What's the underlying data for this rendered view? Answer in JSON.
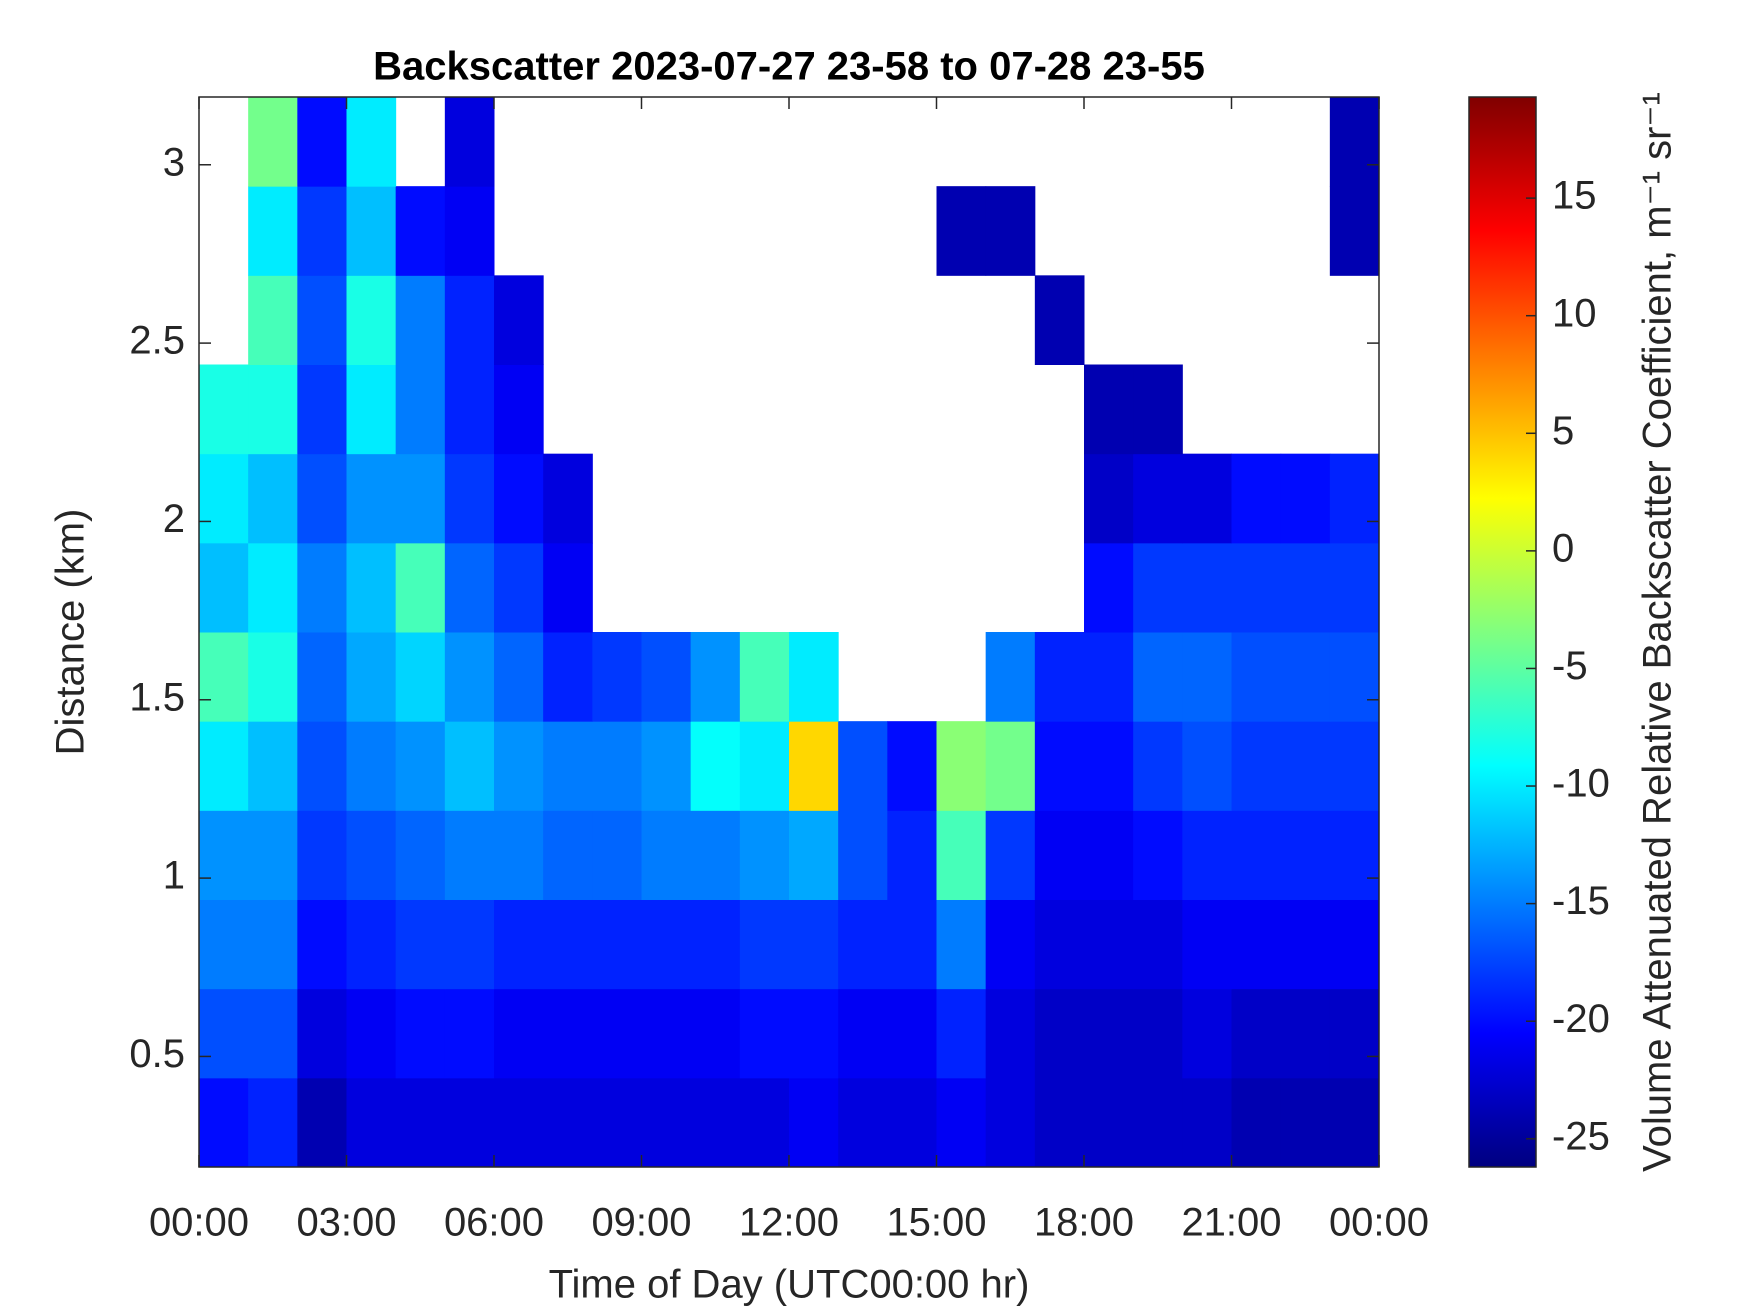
{
  "chart_data": {
    "type": "heatmap",
    "title": "Backscatter 2023-07-27 23-58 to 07-28 23-55",
    "xlabel": "Time of Day (UTC00:00 hr)",
    "ylabel": "Distance (km)",
    "colorbar_label": "Volume Attenuated Relative Backscatter Coefficient, m⁻¹ sr⁻¹",
    "colormap": "jet",
    "grid": false,
    "xlim": [
      0,
      24
    ],
    "xticks": [
      {
        "value": 0,
        "label": "00:00"
      },
      {
        "value": 3,
        "label": "03:00"
      },
      {
        "value": 6,
        "label": "06:00"
      },
      {
        "value": 9,
        "label": "09:00"
      },
      {
        "value": 12,
        "label": "12:00"
      },
      {
        "value": 15,
        "label": "15:00"
      },
      {
        "value": 18,
        "label": "18:00"
      },
      {
        "value": 21,
        "label": "21:00"
      },
      {
        "value": 24,
        "label": "00:00"
      }
    ],
    "ylim": [
      0.19,
      3.19
    ],
    "yticks": [
      0.5,
      1,
      1.5,
      2,
      2.5,
      3
    ],
    "zlim": [
      -26.2,
      19.3
    ],
    "zticks": [
      -25,
      -20,
      -15,
      -10,
      -5,
      0,
      5,
      10,
      15
    ],
    "xbins": [
      0,
      1,
      2,
      3,
      4,
      5,
      6,
      7,
      8,
      9,
      10,
      11,
      12,
      13,
      14,
      15,
      16,
      17,
      18,
      19,
      20,
      21,
      22,
      23,
      24
    ],
    "ybins": [
      0.19,
      0.44,
      0.69,
      0.94,
      1.19,
      1.44,
      1.69,
      1.94,
      2.19,
      2.44,
      2.69,
      2.94,
      3.19
    ],
    "z": [
      [
        -20,
        -19,
        -24,
        -22,
        -22,
        -22,
        -22,
        -22,
        -22,
        -22,
        -22,
        -22,
        -21,
        -22,
        -22,
        -21,
        -22,
        -23,
        -23,
        -23,
        -23,
        -24,
        -24,
        -24
      ],
      [
        -17,
        -17,
        -22,
        -21,
        -20,
        -20,
        -21,
        -21,
        -21,
        -21,
        -21,
        -20,
        -20,
        -21,
        -21,
        -19,
        -22,
        -23,
        -23,
        -23,
        -22,
        -23,
        -23,
        -23
      ],
      [
        -15,
        -15,
        -20,
        -19,
        -18,
        -18,
        -19,
        -19,
        -19,
        -19,
        -19,
        -18,
        -18,
        -19,
        -19,
        -15,
        -21,
        -22,
        -22,
        -22,
        -21,
        -21,
        -21,
        -21
      ],
      [
        -14,
        -14,
        -18,
        -17,
        -16,
        -15,
        -15,
        -16,
        -16,
        -15,
        -15,
        -14,
        -13,
        -17,
        -19,
        -6,
        -18,
        -21,
        -21,
        -20,
        -19,
        -19,
        -19,
        -19
      ],
      [
        -10,
        -12,
        -17,
        -15,
        -14,
        -12,
        -14,
        -15,
        -15,
        -14,
        -9,
        -10,
        4,
        -17,
        -20,
        -3,
        -4,
        -20,
        -20,
        -18,
        -17,
        -18,
        -18,
        -18
      ],
      [
        -6,
        -8,
        -16,
        -13,
        -11,
        -14,
        -16,
        -19,
        -18,
        -17,
        -14,
        -6,
        -10,
        null,
        null,
        null,
        -15,
        -19,
        -19,
        -16,
        -16,
        -17,
        -17,
        -17
      ],
      [
        -12,
        -10,
        -15,
        -12,
        -6,
        -16,
        -18,
        -21,
        null,
        null,
        null,
        null,
        null,
        null,
        null,
        null,
        null,
        null,
        -20,
        -18,
        -18,
        -18,
        -18,
        -18
      ],
      [
        -10,
        -12,
        -17,
        -14,
        -14,
        -18,
        -20,
        -22,
        null,
        null,
        null,
        null,
        null,
        null,
        null,
        null,
        null,
        null,
        -23,
        -22,
        -22,
        -20,
        -20,
        -19
      ],
      [
        -8,
        -8,
        -18,
        -10,
        -15,
        -19,
        -21,
        null,
        null,
        null,
        null,
        null,
        null,
        null,
        null,
        null,
        null,
        null,
        -24,
        -24,
        null,
        null,
        null,
        null
      ],
      [
        null,
        -6,
        -17,
        -8,
        -15,
        -19,
        -22,
        null,
        null,
        null,
        null,
        null,
        null,
        null,
        null,
        null,
        null,
        -24,
        null,
        null,
        null,
        null,
        null,
        null
      ],
      [
        null,
        -10,
        -18,
        -12,
        -20,
        -21,
        null,
        null,
        null,
        null,
        null,
        null,
        null,
        null,
        null,
        -24,
        -24,
        null,
        null,
        null,
        null,
        null,
        null,
        -24
      ],
      [
        null,
        -4,
        -20,
        -10,
        null,
        -22,
        null,
        null,
        null,
        null,
        null,
        null,
        null,
        null,
        null,
        null,
        null,
        null,
        null,
        null,
        null,
        null,
        null,
        -24
      ]
    ]
  }
}
